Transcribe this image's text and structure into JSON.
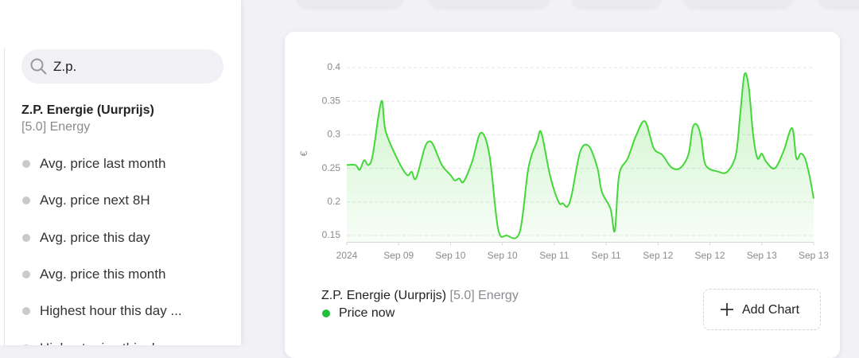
{
  "sidebar": {
    "search": "Z.p.",
    "entity": {
      "title": "Z.P. Energie (Uurprijs)",
      "subtitle": "[5.0] Energy"
    },
    "items": [
      "Avg. price last month",
      "Avg. price next 8H",
      "Avg. price this day",
      "Avg. price this month",
      "Highest hour this day ...",
      "Highest price this day"
    ]
  },
  "card": {
    "title": "Z.P. Energie (Uurprijs)",
    "subtitle": "[5.0] Energy",
    "button": "Add Chart"
  },
  "chart_data": {
    "type": "line",
    "y_label": "€",
    "x": [
      0,
      2,
      3,
      4,
      5,
      6,
      8,
      9,
      12,
      14,
      15,
      16,
      18,
      19,
      20,
      22,
      24,
      25,
      26,
      27,
      29,
      31,
      33,
      35,
      37,
      40,
      42,
      44,
      45,
      47,
      49,
      50,
      51,
      52,
      54,
      56,
      58,
      59,
      61,
      62,
      63,
      65,
      67,
      69,
      71,
      73,
      75,
      77,
      79,
      80,
      81,
      82,
      83,
      86,
      88,
      90,
      91,
      92,
      93,
      94,
      95,
      96,
      97,
      99,
      101,
      103,
      104,
      105,
      106,
      107,
      108
    ],
    "series": [
      {
        "name": "Price now",
        "color": "#45d63a",
        "values": [
          0.255,
          0.255,
          0.248,
          0.262,
          0.255,
          0.27,
          0.35,
          0.305,
          0.26,
          0.24,
          0.245,
          0.235,
          0.28,
          0.29,
          0.285,
          0.255,
          0.24,
          0.232,
          0.235,
          0.23,
          0.26,
          0.303,
          0.27,
          0.16,
          0.15,
          0.155,
          0.25,
          0.29,
          0.303,
          0.24,
          0.2,
          0.198,
          0.193,
          0.21,
          0.275,
          0.283,
          0.25,
          0.215,
          0.19,
          0.157,
          0.24,
          0.265,
          0.3,
          0.32,
          0.28,
          0.27,
          0.252,
          0.25,
          0.27,
          0.31,
          0.315,
          0.295,
          0.255,
          0.245,
          0.245,
          0.27,
          0.33,
          0.39,
          0.37,
          0.3,
          0.265,
          0.272,
          0.26,
          0.25,
          0.275,
          0.31,
          0.265,
          0.272,
          0.265,
          0.24,
          0.205
        ]
      }
    ],
    "xlim": [
      0,
      108
    ],
    "ylim": [
      0.14,
      0.4
    ],
    "xticks": [
      {
        "value": 0,
        "label": "2024"
      },
      {
        "value": 12,
        "label": "Sep 09"
      },
      {
        "value": 24,
        "label": "Sep 10"
      },
      {
        "value": 36,
        "label": "Sep 10"
      },
      {
        "value": 48,
        "label": "Sep 11"
      },
      {
        "value": 60,
        "label": "Sep 11"
      },
      {
        "value": 72,
        "label": "Sep 12"
      },
      {
        "value": 84,
        "label": "Sep 12"
      },
      {
        "value": 96,
        "label": "Sep 13"
      },
      {
        "value": 108,
        "label": "Sep 13"
      }
    ],
    "yticks": [
      0.15,
      0.2,
      0.25,
      0.3,
      0.35,
      0.4
    ],
    "grid": true
  }
}
